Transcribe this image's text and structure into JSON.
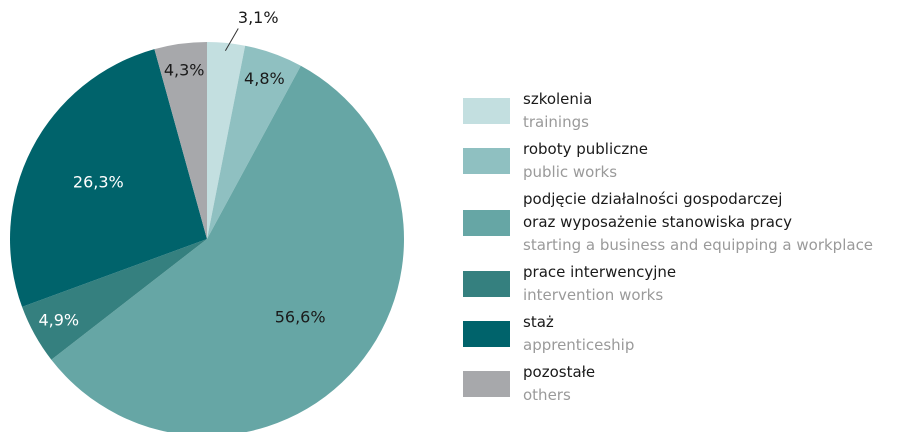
{
  "chart_data": {
    "type": "pie",
    "categories": [
      "szkolenia",
      "roboty publiczne",
      "podjęcie działalności gospodarczej\noraz wyposażenie stanowiska pracy",
      "prace interwencyjne",
      "staż",
      "pozostałe"
    ],
    "categories_en": [
      "trainings",
      "public works",
      "starting a business and equipping a workplace",
      "intervention works",
      "apprenticeship",
      "others"
    ],
    "values": [
      3.1,
      4.8,
      56.6,
      4.9,
      26.3,
      4.3
    ],
    "value_labels": [
      "3,1%",
      "4,8%",
      "56,6%",
      "4,9%",
      "26,3%",
      "4,3%"
    ],
    "colors": [
      "#c3dfe0",
      "#8fc0c1",
      "#66a6a5",
      "#35807f",
      "#00636b",
      "#a7a8ab"
    ],
    "legend": "right"
  }
}
